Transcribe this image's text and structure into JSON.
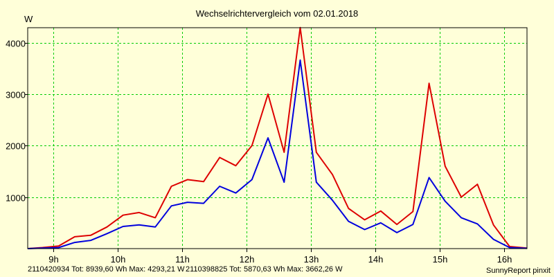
{
  "chart_data": {
    "type": "line",
    "title": "Wechselrichtervergleich vom 02.01.2018",
    "ylabel": "W",
    "xlabel": "",
    "ylim": [
      0,
      4290
    ],
    "xlim": [
      8.6,
      16.35
    ],
    "grid": true,
    "x_ticks": [
      9,
      10,
      11,
      12,
      13,
      14,
      15,
      16
    ],
    "x_tick_labels": [
      "9h",
      "10h",
      "11h",
      "12h",
      "13h",
      "14h",
      "15h",
      "16h"
    ],
    "y_ticks": [
      1000,
      2000,
      3000,
      4000
    ],
    "y_tick_labels": [
      "1000",
      "2000",
      "3000",
      "4000"
    ],
    "series": [
      {
        "name": "2110420934",
        "legend": "2110420934 Tot: 8939,60 Wh Max: 4293,21 W",
        "color": "#dd0000",
        "x": [
          8.6,
          8.83,
          9.08,
          9.33,
          9.58,
          9.83,
          10.08,
          10.33,
          10.58,
          10.83,
          11.08,
          11.33,
          11.58,
          11.83,
          12.08,
          12.33,
          12.58,
          12.83,
          13.08,
          13.33,
          13.58,
          13.83,
          14.08,
          14.33,
          14.58,
          14.83,
          15.08,
          15.33,
          15.58,
          15.83,
          16.08,
          16.35
        ],
        "y": [
          0,
          20,
          50,
          230,
          260,
          420,
          650,
          700,
          600,
          1210,
          1340,
          1300,
          1770,
          1610,
          2000,
          3000,
          1870,
          4293,
          1870,
          1440,
          780,
          560,
          730,
          470,
          720,
          3210,
          1600,
          1000,
          1250,
          460,
          40,
          10
        ]
      },
      {
        "name": "2110398825",
        "legend": "2110398825 Tot: 5870,63 Wh Max: 3662,26 W",
        "color": "#0000dd",
        "x": [
          8.6,
          8.83,
          9.08,
          9.33,
          9.58,
          9.83,
          10.08,
          10.33,
          10.58,
          10.83,
          11.08,
          11.33,
          11.58,
          11.83,
          12.08,
          12.33,
          12.58,
          12.83,
          13.08,
          13.33,
          13.58,
          13.83,
          14.08,
          14.33,
          14.58,
          14.83,
          15.08,
          15.33,
          15.58,
          15.83,
          16.08,
          16.35
        ],
        "y": [
          0,
          10,
          20,
          120,
          160,
          290,
          430,
          460,
          420,
          830,
          900,
          880,
          1210,
          1080,
          1340,
          2150,
          1290,
          3662,
          1290,
          940,
          530,
          370,
          500,
          310,
          470,
          1380,
          920,
          600,
          480,
          180,
          20,
          5
        ]
      }
    ],
    "credit": "SunnyReport pinxit"
  }
}
